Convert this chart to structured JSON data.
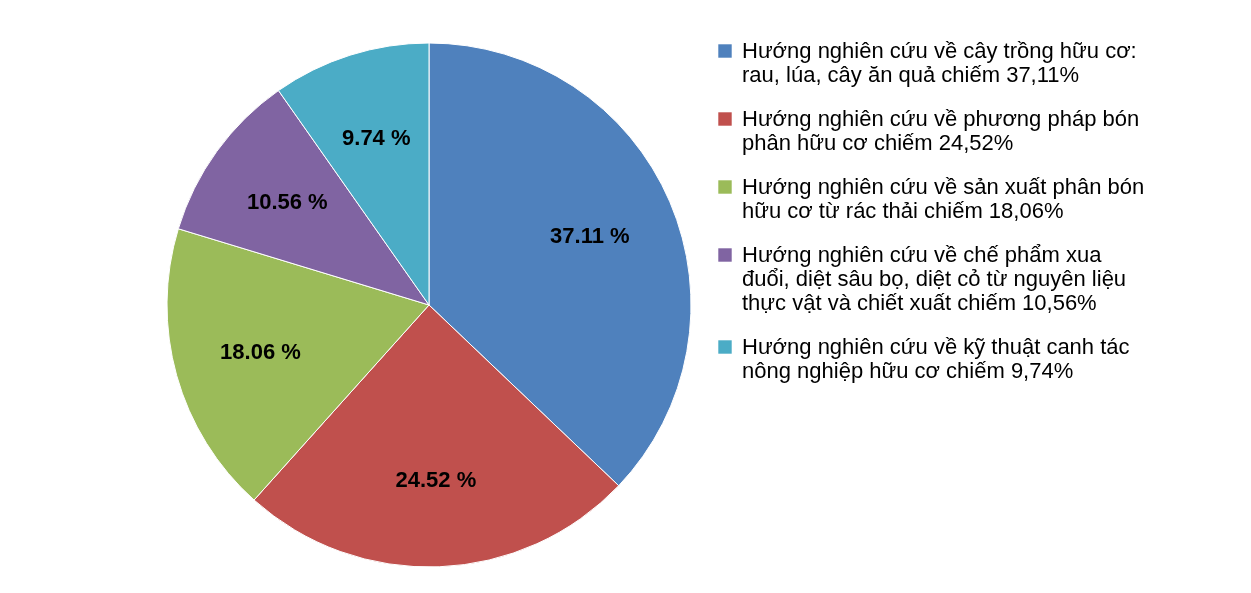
{
  "chart_data": {
    "type": "pie",
    "categories": [
      "Hướng nghiên cứu về cây trồng hữu cơ:\nrau, lúa, cây ăn quả  chiếm 37,11%",
      "Hướng nghiên cứu về phương pháp bón\nphân hữu cơ chiếm 24,52%",
      "Hướng nghiên cứu về sản xuất phân bón\nhữu cơ từ rác thải chiếm 18,06%",
      "Hướng nghiên cứu về chế phẩm xua\nđuổi, diệt sâu bọ, diệt cỏ từ nguyên liệu\nthực vật và chiết xuất chiếm 10,56%",
      "Hướng nghiên cứu về kỹ thuật canh tác\nnông nghiệp hữu cơ chiếm 9,74%"
    ],
    "values": [
      37.11,
      24.52,
      18.06,
      10.56,
      9.74
    ],
    "value_labels": [
      "37.11 %",
      "24.52 %",
      "18.06 %",
      "10.56 %",
      "9.74 %"
    ],
    "colors": [
      "#4f81bd",
      "#c0504d",
      "#9bbb59",
      "#8064a2",
      "#4bacc6"
    ],
    "legend": "right"
  }
}
